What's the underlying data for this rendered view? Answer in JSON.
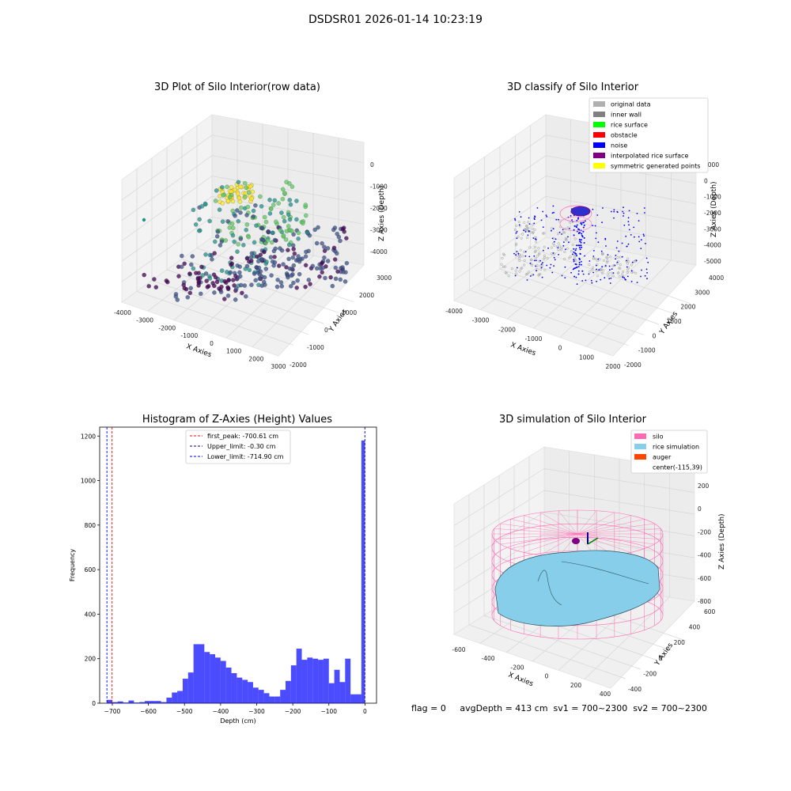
{
  "figure": {
    "title": "DSDSR01 2026-01-14 10:23:19",
    "footer": "flag = 0     avgDepth = 413 cm  sv1 = 700~2300  sv2 = 700~2300"
  },
  "chart_data": [
    {
      "type": "scatter",
      "title": "3D Plot of Silo Interior(row data)",
      "xlabel": "X Axies",
      "ylabel": "Y Axies",
      "zlabel": "Z Axies (Depth)",
      "x_ticks": [
        "-4000",
        "-3000",
        "-2000",
        "-1000",
        "0",
        "1000",
        "2000",
        "3000"
      ],
      "y_ticks": [
        "-2000",
        "-1000",
        "0",
        "1000",
        "2000",
        "3000"
      ],
      "z_ticks": [
        "0",
        "-1000",
        "-2000",
        "-3000",
        "-4000"
      ],
      "colormap": [
        "#440154",
        "#3b528b",
        "#21918c",
        "#5ec962",
        "#fde725"
      ]
    },
    {
      "type": "scatter",
      "title": "3D classify of Silo Interior",
      "xlabel": "X Axies",
      "ylabel": "Y Axies",
      "zlabel": "Z Axies (Depth)",
      "x_ticks": [
        "-4000",
        "-3000",
        "-2000",
        "-1000",
        "0",
        "1000",
        "2000"
      ],
      "y_ticks": [
        "-2000",
        "-1000",
        "0",
        "1000",
        "2000",
        "3000",
        "4000"
      ],
      "z_ticks": [
        "1000",
        "0",
        "-1000",
        "-2000",
        "-3000",
        "-4000",
        "-5000"
      ],
      "legend_position": "top-right",
      "legend": [
        {
          "label": "original data",
          "color": "#b0b0b0"
        },
        {
          "label": "inner wall",
          "color": "#808080"
        },
        {
          "label": "rice surface",
          "color": "#00ff00"
        },
        {
          "label": "obstacle",
          "color": "#ff0000"
        },
        {
          "label": "noise",
          "color": "#0000ff"
        },
        {
          "label": "interpolated rice surface",
          "color": "#800080"
        },
        {
          "label": "symmetric generated points",
          "color": "#ffff00"
        }
      ]
    },
    {
      "type": "bar",
      "title": "Histogram of Z-Axies (Height) Values",
      "xlabel": "Depth (cm)",
      "ylabel": "Frequency",
      "xlim": [
        -735,
        32
      ],
      "ylim": [
        0,
        1240
      ],
      "x_ticks": [
        -700,
        -600,
        -500,
        -400,
        -300,
        -200,
        -100,
        0
      ],
      "y_ticks": [
        0,
        200,
        400,
        600,
        800,
        1000,
        1200
      ],
      "bar_color": "#0000ff",
      "bins": [
        [
          -715,
          -700,
          15
        ],
        [
          -700,
          -685,
          5
        ],
        [
          -685,
          -670,
          8
        ],
        [
          -670,
          -655,
          3
        ],
        [
          -655,
          -640,
          12
        ],
        [
          -640,
          -625,
          3
        ],
        [
          -625,
          -610,
          5
        ],
        [
          -610,
          -595,
          10
        ],
        [
          -595,
          -580,
          10
        ],
        [
          -580,
          -565,
          10
        ],
        [
          -565,
          -550,
          5
        ],
        [
          -550,
          -535,
          25
        ],
        [
          -535,
          -520,
          48
        ],
        [
          -520,
          -505,
          55
        ],
        [
          -505,
          -490,
          110
        ],
        [
          -490,
          -475,
          138
        ],
        [
          -475,
          -460,
          265
        ],
        [
          -460,
          -445,
          265
        ],
        [
          -445,
          -430,
          230
        ],
        [
          -430,
          -415,
          220
        ],
        [
          -415,
          -400,
          205
        ],
        [
          -400,
          -385,
          190
        ],
        [
          -385,
          -370,
          160
        ],
        [
          -370,
          -355,
          135
        ],
        [
          -355,
          -340,
          115
        ],
        [
          -340,
          -325,
          105
        ],
        [
          -325,
          -310,
          95
        ],
        [
          -310,
          -295,
          70
        ],
        [
          -295,
          -280,
          60
        ],
        [
          -280,
          -265,
          45
        ],
        [
          -265,
          -250,
          30
        ],
        [
          -250,
          -235,
          30
        ],
        [
          -235,
          -220,
          60
        ],
        [
          -220,
          -205,
          100
        ],
        [
          -205,
          -190,
          170
        ],
        [
          -190,
          -175,
          245
        ],
        [
          -175,
          -160,
          195
        ],
        [
          -160,
          -145,
          205
        ],
        [
          -145,
          -130,
          200
        ],
        [
          -130,
          -115,
          195
        ],
        [
          -115,
          -100,
          200
        ],
        [
          -100,
          -85,
          90
        ],
        [
          -85,
          -70,
          150
        ],
        [
          -70,
          -55,
          95
        ],
        [
          -55,
          -40,
          200
        ],
        [
          -40,
          -25,
          40
        ],
        [
          -25,
          -10,
          40
        ],
        [
          -10,
          0,
          1180
        ]
      ],
      "vlines": [
        {
          "x": -700.61,
          "label": "first_peak: -700.61 cm",
          "color": "#ff0000"
        },
        {
          "x": -0.3,
          "label": "Upper_limit: -0.30 cm",
          "color": "#00008b"
        },
        {
          "x": -714.9,
          "label": "Lower_limit: -714.90 cm",
          "color": "#0000ff"
        }
      ]
    },
    {
      "type": "other",
      "title": "3D simulation of Silo Interior",
      "xlabel": "X Axies",
      "ylabel": "Y Axies",
      "zlabel": "Z Axies (Depth)",
      "x_ticks": [
        "-600",
        "-400",
        "-200",
        "0",
        "200",
        "400"
      ],
      "y_ticks": [
        "-400",
        "-200",
        "0",
        "200",
        "400",
        "600"
      ],
      "z_ticks": [
        "200",
        "0",
        "-200",
        "-400",
        "-600",
        "-800"
      ],
      "legend_position": "top-right",
      "legend": [
        {
          "label": "silo",
          "color": "#ff69b4"
        },
        {
          "label": "rice simulation",
          "color": "#87ceeb"
        },
        {
          "label": "auger",
          "color": "#ff4500"
        },
        {
          "label": "center(-115,39)",
          "color": ""
        }
      ]
    }
  ]
}
